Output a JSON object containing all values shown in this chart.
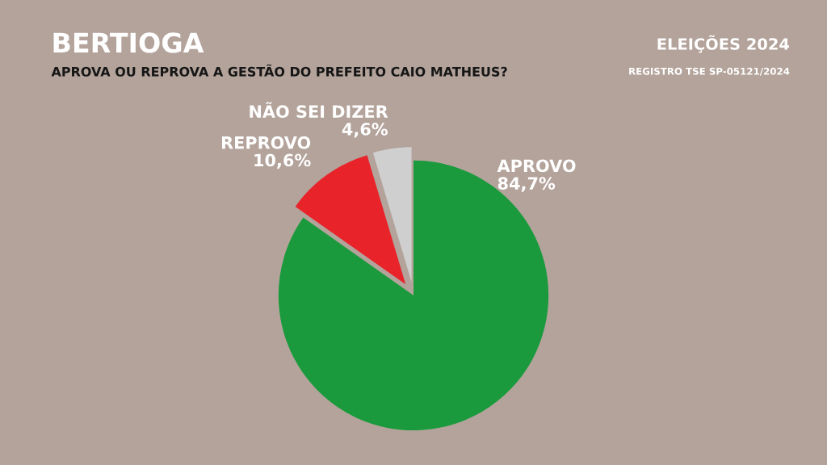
{
  "chart_data": {
    "type": "pie",
    "title": "BERTIOGA",
    "subtitle": "APROVA OU REPROVA A GESTÃO DO PREFEITO CAIO MATHEUS?",
    "categories": [
      "APROVO",
      "REPROVO",
      "NÃO SEI DIZER"
    ],
    "values": [
      84.7,
      10.6,
      4.6
    ],
    "value_labels": [
      "84,7%",
      "10,6%",
      "4,6%"
    ],
    "colors": [
      "#1a9a3c",
      "#e8232a",
      "#cfcfcf"
    ],
    "legend": false,
    "annotations": [
      "ELEIÇÕES 2024",
      "REGISTRO TSE SP-05121/2024"
    ]
  }
}
